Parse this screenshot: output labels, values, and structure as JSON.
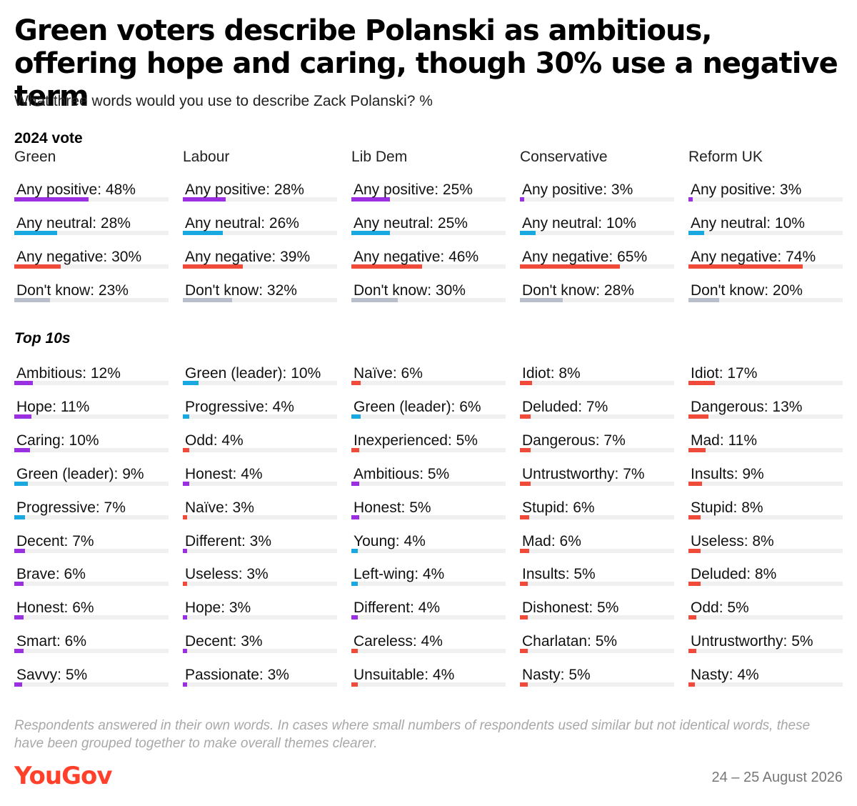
{
  "title": "Green voters describe Polanski as ambitious, offering hope and caring, though 30% use a negative term",
  "subtitle": "What three words would you use to describe Zack Polanski? %",
  "section_vote_label": "2024 vote",
  "section_top_label": "Top 10s",
  "note": "Respondents answered in their own words. In cases where small numbers of respondents used similar but not identical words, these have been grouped together to make overall themes clearer.",
  "logo_text": "YouGov",
  "date": "24 – 25 August 2026",
  "colors": {
    "positive": "#9b30e0",
    "neutral": "#19a8df",
    "negative": "#f04a3a",
    "dont_know": "#b8bfca",
    "track": "#f0f0f0",
    "logo": "#ff412c"
  },
  "chart_data": {
    "type": "bar",
    "xlim": [
      0,
      100
    ],
    "columns": [
      {
        "name": "Green",
        "summary": [
          {
            "label": "Any positive",
            "value": 48,
            "cat": "positive"
          },
          {
            "label": "Any neutral",
            "value": 28,
            "cat": "neutral"
          },
          {
            "label": "Any negative",
            "value": 30,
            "cat": "negative"
          },
          {
            "label": "Don't know",
            "value": 23,
            "cat": "dont_know"
          }
        ],
        "top10": [
          {
            "label": "Ambitious",
            "value": 12,
            "cat": "positive"
          },
          {
            "label": "Hope",
            "value": 11,
            "cat": "positive"
          },
          {
            "label": "Caring",
            "value": 10,
            "cat": "positive"
          },
          {
            "label": "Green (leader)",
            "value": 9,
            "cat": "neutral"
          },
          {
            "label": "Progressive",
            "value": 7,
            "cat": "neutral"
          },
          {
            "label": "Decent",
            "value": 7,
            "cat": "positive"
          },
          {
            "label": "Brave",
            "value": 6,
            "cat": "positive"
          },
          {
            "label": "Honest",
            "value": 6,
            "cat": "positive"
          },
          {
            "label": "Smart",
            "value": 6,
            "cat": "positive"
          },
          {
            "label": "Savvy",
            "value": 5,
            "cat": "positive"
          }
        ]
      },
      {
        "name": "Labour",
        "summary": [
          {
            "label": "Any positive",
            "value": 28,
            "cat": "positive"
          },
          {
            "label": "Any neutral",
            "value": 26,
            "cat": "neutral"
          },
          {
            "label": "Any negative",
            "value": 39,
            "cat": "negative"
          },
          {
            "label": "Don't know",
            "value": 32,
            "cat": "dont_know"
          }
        ],
        "top10": [
          {
            "label": "Green (leader)",
            "value": 10,
            "cat": "neutral"
          },
          {
            "label": "Progressive",
            "value": 4,
            "cat": "neutral"
          },
          {
            "label": "Odd",
            "value": 4,
            "cat": "negative"
          },
          {
            "label": "Honest",
            "value": 4,
            "cat": "positive"
          },
          {
            "label": "Naïve",
            "value": 3,
            "cat": "negative"
          },
          {
            "label": "Different",
            "value": 3,
            "cat": "positive"
          },
          {
            "label": "Useless",
            "value": 3,
            "cat": "negative"
          },
          {
            "label": "Hope",
            "value": 3,
            "cat": "positive"
          },
          {
            "label": "Decent",
            "value": 3,
            "cat": "positive"
          },
          {
            "label": "Passionate",
            "value": 3,
            "cat": "positive"
          }
        ]
      },
      {
        "name": "Lib Dem",
        "summary": [
          {
            "label": "Any positive",
            "value": 25,
            "cat": "positive"
          },
          {
            "label": "Any neutral",
            "value": 25,
            "cat": "neutral"
          },
          {
            "label": "Any negative",
            "value": 46,
            "cat": "negative"
          },
          {
            "label": "Don't know",
            "value": 30,
            "cat": "dont_know"
          }
        ],
        "top10": [
          {
            "label": "Naïve",
            "value": 6,
            "cat": "negative"
          },
          {
            "label": "Green (leader)",
            "value": 6,
            "cat": "neutral"
          },
          {
            "label": "Inexperienced",
            "value": 5,
            "cat": "negative"
          },
          {
            "label": "Ambitious",
            "value": 5,
            "cat": "positive"
          },
          {
            "label": "Honest",
            "value": 5,
            "cat": "positive"
          },
          {
            "label": "Young",
            "value": 4,
            "cat": "neutral"
          },
          {
            "label": "Left-wing",
            "value": 4,
            "cat": "neutral"
          },
          {
            "label": "Different",
            "value": 4,
            "cat": "positive"
          },
          {
            "label": "Careless",
            "value": 4,
            "cat": "negative"
          },
          {
            "label": "Unsuitable",
            "value": 4,
            "cat": "negative"
          }
        ]
      },
      {
        "name": "Conservative",
        "summary": [
          {
            "label": "Any positive",
            "value": 3,
            "cat": "positive"
          },
          {
            "label": "Any neutral",
            "value": 10,
            "cat": "neutral"
          },
          {
            "label": "Any negative",
            "value": 65,
            "cat": "negative"
          },
          {
            "label": "Don't know",
            "value": 28,
            "cat": "dont_know"
          }
        ],
        "top10": [
          {
            "label": "Idiot",
            "value": 8,
            "cat": "negative"
          },
          {
            "label": "Deluded",
            "value": 7,
            "cat": "negative"
          },
          {
            "label": "Dangerous",
            "value": 7,
            "cat": "negative"
          },
          {
            "label": "Untrustworthy",
            "value": 7,
            "cat": "negative"
          },
          {
            "label": "Stupid",
            "value": 6,
            "cat": "negative"
          },
          {
            "label": "Mad",
            "value": 6,
            "cat": "negative"
          },
          {
            "label": "Insults",
            "value": 5,
            "cat": "negative"
          },
          {
            "label": "Dishonest",
            "value": 5,
            "cat": "negative"
          },
          {
            "label": "Charlatan",
            "value": 5,
            "cat": "negative"
          },
          {
            "label": "Nasty",
            "value": 5,
            "cat": "negative"
          }
        ]
      },
      {
        "name": "Reform UK",
        "summary": [
          {
            "label": "Any positive",
            "value": 3,
            "cat": "positive"
          },
          {
            "label": "Any neutral",
            "value": 10,
            "cat": "neutral"
          },
          {
            "label": "Any negative",
            "value": 74,
            "cat": "negative"
          },
          {
            "label": "Don't know",
            "value": 20,
            "cat": "dont_know"
          }
        ],
        "top10": [
          {
            "label": "Idiot",
            "value": 17,
            "cat": "negative"
          },
          {
            "label": "Dangerous",
            "value": 13,
            "cat": "negative"
          },
          {
            "label": "Mad",
            "value": 11,
            "cat": "negative"
          },
          {
            "label": "Insults",
            "value": 9,
            "cat": "negative"
          },
          {
            "label": "Stupid",
            "value": 8,
            "cat": "negative"
          },
          {
            "label": "Useless",
            "value": 8,
            "cat": "negative"
          },
          {
            "label": "Deluded",
            "value": 8,
            "cat": "negative"
          },
          {
            "label": "Odd",
            "value": 5,
            "cat": "negative"
          },
          {
            "label": "Untrustworthy",
            "value": 5,
            "cat": "negative"
          },
          {
            "label": "Nasty",
            "value": 4,
            "cat": "negative"
          }
        ]
      }
    ]
  }
}
